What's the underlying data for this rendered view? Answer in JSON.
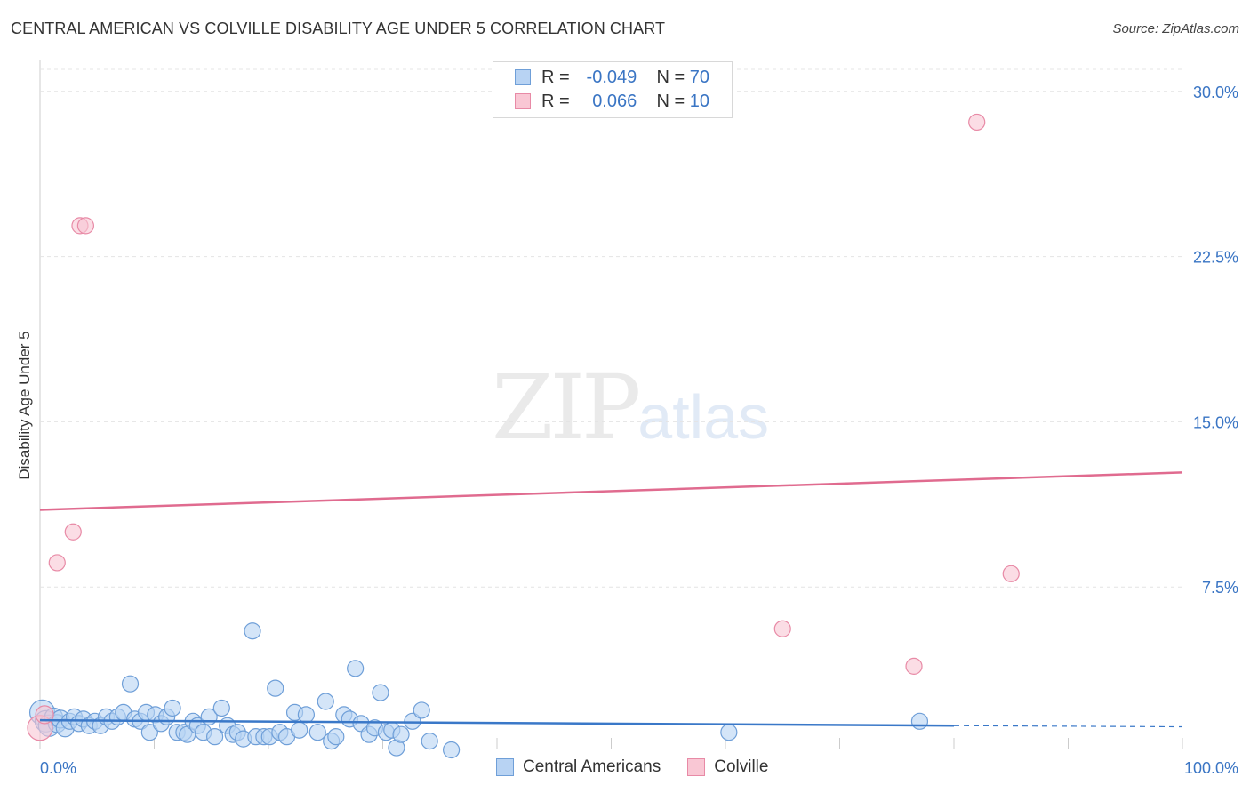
{
  "title": "CENTRAL AMERICAN VS COLVILLE DISABILITY AGE UNDER 5 CORRELATION CHART",
  "source": "Source: ZipAtlas.com",
  "watermark": {
    "zip": "ZIP",
    "atlas": "atlas"
  },
  "legend": {
    "r_label": "R =",
    "n_label": "N =",
    "series": [
      {
        "name": "Central Americans",
        "r": "-0.049",
        "n": "70",
        "fill": "#b8d3f3",
        "stroke": "#6f9fd8"
      },
      {
        "name": "Colville",
        "r": "0.066",
        "n": "10",
        "fill": "#f9c7d4",
        "stroke": "#e88aa6"
      }
    ]
  },
  "colors": {
    "blue_line": "#3a78c8",
    "pink_line": "#e06b8f",
    "tick_text": "#3a75c4",
    "grid": "#e4e4e4"
  },
  "chart_data": {
    "type": "scatter",
    "title": "CENTRAL AMERICAN VS COLVILLE DISABILITY AGE UNDER 5 CORRELATION CHART",
    "xlabel": "",
    "ylabel": "Disability Age Under 5",
    "xlim": [
      0,
      100
    ],
    "ylim": [
      0,
      31
    ],
    "x_tick_labels": [
      {
        "v": 0,
        "label": "0.0%"
      },
      {
        "v": 100,
        "label": "100.0%"
      }
    ],
    "y_ticks": [
      {
        "v": 7.5,
        "label": "7.5%"
      },
      {
        "v": 15.0,
        "label": "15.0%"
      },
      {
        "v": 22.5,
        "label": "22.5%"
      },
      {
        "v": 30.0,
        "label": "30.0%"
      }
    ],
    "series": [
      {
        "name": "Central Americans",
        "trend": {
          "x0": 0,
          "y0": 1.45,
          "x1": 80,
          "y1": 1.2,
          "dash_x1": 100,
          "dash_y1": 1.15
        },
        "points": [
          [
            0.2,
            1.8,
            14
          ],
          [
            0.5,
            1.4,
            12
          ],
          [
            0.8,
            1.2,
            12
          ],
          [
            1.2,
            1.6,
            10
          ],
          [
            1.5,
            1.3,
            10
          ],
          [
            1.8,
            1.5,
            10
          ],
          [
            2.2,
            1.1,
            10
          ],
          [
            2.6,
            1.4,
            9
          ],
          [
            3.0,
            1.6,
            9
          ],
          [
            3.4,
            1.3,
            9
          ],
          [
            3.8,
            1.5,
            9
          ],
          [
            4.3,
            1.2,
            9
          ],
          [
            4.8,
            1.4,
            9
          ],
          [
            5.3,
            1.2,
            9
          ],
          [
            5.8,
            1.6,
            9
          ],
          [
            6.3,
            1.4,
            9
          ],
          [
            6.8,
            1.6,
            9
          ],
          [
            7.3,
            1.8,
            9
          ],
          [
            7.9,
            3.1,
            9
          ],
          [
            8.3,
            1.5,
            9
          ],
          [
            8.8,
            1.4,
            9
          ],
          [
            9.3,
            1.8,
            9
          ],
          [
            9.6,
            0.9,
            9
          ],
          [
            10.1,
            1.7,
            9
          ],
          [
            10.6,
            1.3,
            9
          ],
          [
            11.1,
            1.6,
            9
          ],
          [
            11.6,
            2.0,
            9
          ],
          [
            12.0,
            0.9,
            9
          ],
          [
            12.6,
            0.9,
            9
          ],
          [
            12.9,
            0.8,
            9
          ],
          [
            13.4,
            1.4,
            9
          ],
          [
            13.8,
            1.2,
            9
          ],
          [
            14.3,
            0.9,
            9
          ],
          [
            14.8,
            1.6,
            9
          ],
          [
            15.3,
            0.7,
            9
          ],
          [
            15.9,
            2.0,
            9
          ],
          [
            16.4,
            1.2,
            9
          ],
          [
            16.9,
            0.8,
            9
          ],
          [
            17.3,
            0.9,
            9
          ],
          [
            17.8,
            0.6,
            9
          ],
          [
            18.6,
            5.5,
            9
          ],
          [
            18.9,
            0.7,
            9
          ],
          [
            19.6,
            0.7,
            9
          ],
          [
            20.1,
            0.7,
            9
          ],
          [
            20.6,
            2.9,
            9
          ],
          [
            21.0,
            0.9,
            9
          ],
          [
            21.6,
            0.7,
            9
          ],
          [
            22.3,
            1.8,
            9
          ],
          [
            22.7,
            1.0,
            9
          ],
          [
            23.3,
            1.7,
            9
          ],
          [
            24.3,
            0.9,
            9
          ],
          [
            25.0,
            2.3,
            9
          ],
          [
            25.5,
            0.5,
            9
          ],
          [
            25.9,
            0.7,
            9
          ],
          [
            26.6,
            1.7,
            9
          ],
          [
            27.1,
            1.5,
            9
          ],
          [
            27.6,
            3.8,
            9
          ],
          [
            28.1,
            1.3,
            9
          ],
          [
            28.8,
            0.8,
            9
          ],
          [
            29.3,
            1.1,
            9
          ],
          [
            29.8,
            2.7,
            9
          ],
          [
            30.3,
            0.9,
            9
          ],
          [
            30.8,
            1.0,
            9
          ],
          [
            31.2,
            0.2,
            9
          ],
          [
            31.6,
            0.8,
            9
          ],
          [
            32.6,
            1.4,
            9
          ],
          [
            33.4,
            1.9,
            9
          ],
          [
            34.1,
            0.5,
            9
          ],
          [
            36.0,
            0.1,
            9
          ],
          [
            60.3,
            0.9,
            9
          ]
        ]
      },
      {
        "name": "Colville",
        "trend": {
          "x0": 0,
          "y0": 11.0,
          "x1": 100,
          "y1": 12.7
        },
        "points": [
          [
            0.0,
            1.1,
            14
          ],
          [
            0.4,
            1.7,
            10
          ],
          [
            1.5,
            8.6,
            9
          ],
          [
            2.9,
            10.0,
            9
          ],
          [
            3.5,
            23.9,
            9
          ],
          [
            4.0,
            23.9,
            9
          ],
          [
            65.0,
            5.6,
            9
          ],
          [
            76.5,
            3.9,
            9
          ],
          [
            82.0,
            28.6,
            9
          ],
          [
            85.0,
            8.1,
            9
          ]
        ]
      }
    ],
    "extra_blue_points": [
      [
        77.0,
        1.4,
        9
      ]
    ]
  }
}
